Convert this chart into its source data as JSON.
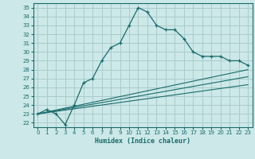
{
  "title": "",
  "xlabel": "Humidex (Indice chaleur)",
  "bg_color": "#cce8e8",
  "grid_color": "#aacccc",
  "line_color": "#1a6b6b",
  "xlim": [
    -0.5,
    23.5
  ],
  "ylim": [
    21.5,
    35.5
  ],
  "xticks": [
    0,
    1,
    2,
    3,
    4,
    5,
    6,
    7,
    8,
    9,
    10,
    11,
    12,
    13,
    14,
    15,
    16,
    17,
    18,
    19,
    20,
    21,
    22,
    23
  ],
  "yticks": [
    22,
    23,
    24,
    25,
    26,
    27,
    28,
    29,
    30,
    31,
    32,
    33,
    34,
    35
  ],
  "line1_x": [
    0,
    1,
    2,
    3,
    4,
    5,
    6,
    7,
    8,
    9,
    10,
    11,
    12,
    13,
    14,
    15,
    16,
    17,
    18,
    19,
    20,
    21,
    22,
    23
  ],
  "line1_y": [
    23.0,
    23.5,
    23.0,
    21.8,
    24.0,
    26.5,
    27.0,
    29.0,
    30.5,
    31.0,
    33.0,
    35.0,
    34.5,
    33.0,
    32.5,
    32.5,
    31.5,
    30.0,
    29.5,
    29.5,
    29.5,
    29.0,
    29.0,
    28.5
  ],
  "line2_x": [
    0,
    23
  ],
  "line2_y": [
    23.0,
    28.0
  ],
  "line3_x": [
    0,
    23
  ],
  "line3_y": [
    23.0,
    27.2
  ],
  "line4_x": [
    0,
    23
  ],
  "line4_y": [
    23.0,
    26.3
  ]
}
